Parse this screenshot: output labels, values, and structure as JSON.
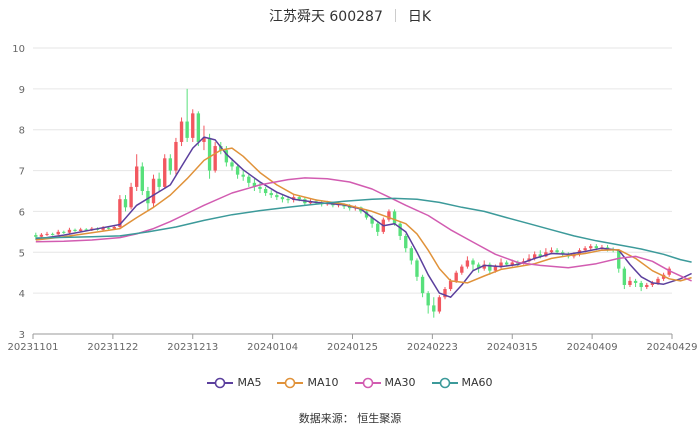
{
  "header": {
    "title": "江苏舜天 600287",
    "period": "日K"
  },
  "source": "数据来源： 恒生聚源",
  "colors": {
    "up": "#f2575f",
    "down": "#57e07b",
    "MA5": "#5b3f9d",
    "MA10": "#e0923a",
    "MA30": "#d25cb1",
    "MA60": "#3c9a9a"
  },
  "chart_data": {
    "type": "candlestick",
    "title": "江苏舜天 600287 日K",
    "ylim": [
      3,
      10
    ],
    "yticks": [
      "3",
      "4",
      "5",
      "6",
      "7",
      "8",
      "9",
      "10"
    ],
    "xlabels": [
      "20231101",
      "20231122",
      "20231213",
      "20240104",
      "20240125",
      "20240223",
      "20240315",
      "20240409",
      "20240429"
    ],
    "grid": true,
    "legend_position": "bottom-center",
    "legend": [
      "MA5",
      "MA10",
      "MA30",
      "MA60"
    ],
    "candles": [
      [
        5.42,
        5.38,
        5.48,
        5.3
      ],
      [
        5.38,
        5.43,
        5.47,
        5.35
      ],
      [
        5.43,
        5.45,
        5.5,
        5.4
      ],
      [
        5.45,
        5.44,
        5.48,
        5.41
      ],
      [
        5.44,
        5.5,
        5.55,
        5.42
      ],
      [
        5.5,
        5.48,
        5.53,
        5.45
      ],
      [
        5.48,
        5.55,
        5.6,
        5.46
      ],
      [
        5.55,
        5.52,
        5.58,
        5.5
      ],
      [
        5.52,
        5.56,
        5.6,
        5.5
      ],
      [
        5.56,
        5.54,
        5.59,
        5.52
      ],
      [
        5.54,
        5.58,
        5.62,
        5.52
      ],
      [
        5.58,
        5.55,
        5.61,
        5.53
      ],
      [
        5.55,
        5.6,
        5.64,
        5.53
      ],
      [
        5.6,
        5.58,
        5.63,
        5.56
      ],
      [
        5.58,
        5.62,
        5.66,
        5.56
      ],
      [
        5.62,
        6.3,
        6.4,
        5.6
      ],
      [
        6.3,
        6.1,
        6.4,
        6.0
      ],
      [
        6.1,
        6.6,
        6.7,
        6.05
      ],
      [
        6.6,
        7.1,
        7.4,
        6.5
      ],
      [
        7.1,
        6.5,
        7.2,
        6.4
      ],
      [
        6.5,
        6.2,
        6.6,
        6.0
      ],
      [
        6.2,
        6.8,
        6.9,
        6.1
      ],
      [
        6.8,
        6.6,
        6.95,
        6.5
      ],
      [
        6.6,
        7.3,
        7.4,
        6.55
      ],
      [
        7.3,
        7.0,
        7.4,
        6.9
      ],
      [
        7.0,
        7.7,
        7.8,
        6.9
      ],
      [
        7.7,
        8.2,
        8.3,
        7.6
      ],
      [
        8.2,
        7.8,
        9.0,
        7.7
      ],
      [
        7.8,
        8.4,
        8.5,
        7.7
      ],
      [
        8.4,
        7.7,
        8.45,
        7.6
      ],
      [
        7.7,
        7.8,
        8.1,
        7.5
      ],
      [
        7.8,
        7.0,
        7.9,
        6.8
      ],
      [
        7.0,
        7.6,
        7.7,
        6.95
      ],
      [
        7.6,
        7.5,
        7.7,
        7.4
      ],
      [
        7.5,
        7.2,
        7.6,
        7.1
      ],
      [
        7.2,
        7.1,
        7.3,
        7.0
      ],
      [
        7.1,
        6.9,
        7.15,
        6.8
      ],
      [
        6.9,
        6.85,
        7.0,
        6.75
      ],
      [
        6.85,
        6.7,
        6.9,
        6.6
      ],
      [
        6.7,
        6.6,
        6.8,
        6.5
      ],
      [
        6.6,
        6.55,
        6.7,
        6.45
      ],
      [
        6.55,
        6.45,
        6.6,
        6.38
      ],
      [
        6.45,
        6.4,
        6.52,
        6.33
      ],
      [
        6.4,
        6.35,
        6.48,
        6.28
      ],
      [
        6.35,
        6.3,
        6.42,
        6.22
      ],
      [
        6.3,
        6.28,
        6.38,
        6.2
      ],
      [
        6.28,
        6.35,
        6.4,
        6.22
      ],
      [
        6.35,
        6.3,
        6.4,
        6.25
      ],
      [
        6.3,
        6.2,
        6.35,
        6.15
      ],
      [
        6.2,
        6.25,
        6.3,
        6.15
      ],
      [
        6.25,
        6.22,
        6.3,
        6.18
      ],
      [
        6.22,
        6.18,
        6.28,
        6.12
      ],
      [
        6.18,
        6.2,
        6.26,
        6.14
      ],
      [
        6.2,
        6.15,
        6.24,
        6.1
      ],
      [
        6.15,
        6.18,
        6.22,
        6.1
      ],
      [
        6.18,
        6.12,
        6.2,
        6.06
      ],
      [
        6.12,
        6.08,
        6.18,
        6.02
      ],
      [
        6.08,
        6.1,
        6.15,
        6.02
      ],
      [
        6.1,
        6.0,
        6.12,
        5.95
      ],
      [
        6.0,
        5.85,
        6.05,
        5.8
      ],
      [
        5.85,
        5.7,
        5.9,
        5.6
      ],
      [
        5.7,
        5.5,
        5.75,
        5.4
      ],
      [
        5.5,
        5.8,
        5.85,
        5.45
      ],
      [
        5.8,
        6.0,
        6.05,
        5.75
      ],
      [
        6.0,
        5.7,
        6.05,
        5.65
      ],
      [
        5.7,
        5.4,
        5.75,
        5.3
      ],
      [
        5.4,
        5.1,
        5.45,
        5.0
      ],
      [
        5.1,
        4.8,
        5.15,
        4.7
      ],
      [
        4.8,
        4.4,
        4.85,
        4.3
      ],
      [
        4.4,
        4.0,
        4.45,
        3.9
      ],
      [
        4.0,
        3.7,
        4.05,
        3.5
      ],
      [
        3.7,
        3.55,
        3.9,
        3.4
      ],
      [
        3.55,
        3.9,
        3.95,
        3.5
      ],
      [
        3.9,
        4.1,
        4.15,
        3.85
      ],
      [
        4.1,
        4.3,
        4.35,
        4.05
      ],
      [
        4.3,
        4.5,
        4.55,
        4.25
      ],
      [
        4.5,
        4.65,
        4.7,
        4.45
      ],
      [
        4.65,
        4.8,
        4.9,
        4.6
      ],
      [
        4.8,
        4.7,
        4.85,
        4.55
      ],
      [
        4.7,
        4.6,
        4.75,
        4.5
      ],
      [
        4.6,
        4.7,
        4.8,
        4.55
      ],
      [
        4.7,
        4.55,
        4.75,
        4.45
      ],
      [
        4.55,
        4.65,
        4.7,
        4.5
      ],
      [
        4.65,
        4.75,
        4.85,
        4.6
      ],
      [
        4.75,
        4.7,
        4.8,
        4.65
      ],
      [
        4.7,
        4.75,
        4.82,
        4.65
      ],
      [
        4.75,
        4.72,
        4.8,
        4.66
      ],
      [
        4.72,
        4.78,
        4.85,
        4.7
      ],
      [
        4.78,
        4.85,
        4.95,
        4.75
      ],
      [
        4.85,
        4.95,
        5.02,
        4.8
      ],
      [
        4.95,
        4.9,
        5.05,
        4.85
      ],
      [
        4.9,
        5.0,
        5.1,
        4.88
      ],
      [
        5.0,
        5.05,
        5.12,
        4.95
      ],
      [
        5.05,
        5.0,
        5.1,
        4.95
      ],
      [
        5.0,
        4.95,
        5.05,
        4.9
      ],
      [
        4.95,
        4.9,
        5.0,
        4.85
      ],
      [
        4.9,
        4.95,
        5.0,
        4.85
      ],
      [
        4.95,
        5.05,
        5.1,
        4.9
      ],
      [
        5.05,
        5.1,
        5.15,
        5.0
      ],
      [
        5.1,
        5.15,
        5.2,
        5.05
      ],
      [
        5.15,
        5.1,
        5.2,
        5.05
      ],
      [
        5.1,
        5.12,
        5.18,
        5.05
      ],
      [
        5.12,
        5.08,
        5.18,
        5.02
      ],
      [
        5.08,
        5.05,
        5.12,
        5.0
      ],
      [
        5.05,
        4.6,
        5.08,
        4.5
      ],
      [
        4.6,
        4.2,
        4.65,
        4.1
      ],
      [
        4.2,
        4.3,
        4.4,
        4.15
      ],
      [
        4.3,
        4.25,
        4.35,
        4.15
      ],
      [
        4.25,
        4.15,
        4.3,
        4.05
      ],
      [
        4.15,
        4.2,
        4.25,
        4.1
      ],
      [
        4.2,
        4.25,
        4.3,
        4.15
      ],
      [
        4.25,
        4.35,
        4.4,
        4.2
      ],
      [
        4.35,
        4.45,
        4.5,
        4.3
      ],
      [
        4.45,
        4.6,
        4.65,
        4.4
      ]
    ],
    "series": [
      {
        "name": "MA5",
        "values": [
          [
            0,
            5.32
          ],
          [
            5,
            5.42
          ],
          [
            10,
            5.55
          ],
          [
            15,
            5.68
          ],
          [
            18,
            6.15
          ],
          [
            21,
            6.4
          ],
          [
            24,
            6.65
          ],
          [
            26,
            7.1
          ],
          [
            28,
            7.55
          ],
          [
            30,
            7.82
          ],
          [
            32,
            7.75
          ],
          [
            34,
            7.4
          ],
          [
            37,
            7.02
          ],
          [
            40,
            6.72
          ],
          [
            43,
            6.47
          ],
          [
            46,
            6.3
          ],
          [
            50,
            6.22
          ],
          [
            55,
            6.16
          ],
          [
            58,
            6.06
          ],
          [
            60,
            5.85
          ],
          [
            62,
            5.65
          ],
          [
            64,
            5.7
          ],
          [
            66,
            5.5
          ],
          [
            68,
            5.0
          ],
          [
            70,
            4.45
          ],
          [
            72,
            4.0
          ],
          [
            74,
            3.9
          ],
          [
            76,
            4.2
          ],
          [
            78,
            4.55
          ],
          [
            80,
            4.68
          ],
          [
            83,
            4.65
          ],
          [
            86,
            4.7
          ],
          [
            89,
            4.85
          ],
          [
            92,
            4.97
          ],
          [
            95,
            4.95
          ],
          [
            98,
            5.02
          ],
          [
            101,
            5.1
          ],
          [
            104,
            5.05
          ],
          [
            106,
            4.7
          ],
          [
            108,
            4.4
          ],
          [
            110,
            4.25
          ],
          [
            112,
            4.22
          ],
          [
            115,
            4.35
          ],
          [
            117,
            4.48
          ]
        ]
      },
      {
        "name": "MA10",
        "values": [
          [
            0,
            5.3
          ],
          [
            5,
            5.38
          ],
          [
            10,
            5.48
          ],
          [
            15,
            5.58
          ],
          [
            18,
            5.85
          ],
          [
            21,
            6.1
          ],
          [
            24,
            6.4
          ],
          [
            27,
            6.8
          ],
          [
            30,
            7.25
          ],
          [
            33,
            7.5
          ],
          [
            35,
            7.55
          ],
          [
            37,
            7.35
          ],
          [
            40,
            6.95
          ],
          [
            43,
            6.65
          ],
          [
            46,
            6.42
          ],
          [
            50,
            6.28
          ],
          [
            55,
            6.18
          ],
          [
            60,
            6.0
          ],
          [
            63,
            5.85
          ],
          [
            66,
            5.7
          ],
          [
            68,
            5.45
          ],
          [
            70,
            5.05
          ],
          [
            72,
            4.6
          ],
          [
            74,
            4.3
          ],
          [
            77,
            4.25
          ],
          [
            80,
            4.42
          ],
          [
            83,
            4.58
          ],
          [
            86,
            4.65
          ],
          [
            89,
            4.72
          ],
          [
            92,
            4.85
          ],
          [
            95,
            4.92
          ],
          [
            98,
            4.97
          ],
          [
            101,
            5.05
          ],
          [
            104,
            5.06
          ],
          [
            107,
            4.85
          ],
          [
            110,
            4.55
          ],
          [
            113,
            4.35
          ],
          [
            115,
            4.3
          ],
          [
            117,
            4.38
          ]
        ]
      },
      {
        "name": "MA30",
        "values": [
          [
            0,
            5.26
          ],
          [
            5,
            5.27
          ],
          [
            10,
            5.3
          ],
          [
            15,
            5.36
          ],
          [
            18,
            5.45
          ],
          [
            21,
            5.58
          ],
          [
            24,
            5.75
          ],
          [
            27,
            5.95
          ],
          [
            30,
            6.15
          ],
          [
            35,
            6.45
          ],
          [
            40,
            6.65
          ],
          [
            45,
            6.78
          ],
          [
            48,
            6.82
          ],
          [
            52,
            6.8
          ],
          [
            56,
            6.72
          ],
          [
            60,
            6.55
          ],
          [
            63,
            6.35
          ],
          [
            66,
            6.15
          ],
          [
            70,
            5.9
          ],
          [
            74,
            5.55
          ],
          [
            78,
            5.25
          ],
          [
            82,
            4.95
          ],
          [
            86,
            4.75
          ],
          [
            90,
            4.68
          ],
          [
            95,
            4.62
          ],
          [
            100,
            4.72
          ],
          [
            104,
            4.85
          ],
          [
            107,
            4.9
          ],
          [
            110,
            4.78
          ],
          [
            113,
            4.55
          ],
          [
            116,
            4.36
          ],
          [
            117,
            4.3
          ]
        ]
      },
      {
        "name": "MA60",
        "values": [
          [
            0,
            5.35
          ],
          [
            10,
            5.38
          ],
          [
            15,
            5.4
          ],
          [
            20,
            5.5
          ],
          [
            25,
            5.62
          ],
          [
            30,
            5.78
          ],
          [
            35,
            5.92
          ],
          [
            40,
            6.02
          ],
          [
            45,
            6.1
          ],
          [
            50,
            6.18
          ],
          [
            55,
            6.25
          ],
          [
            60,
            6.3
          ],
          [
            64,
            6.32
          ],
          [
            68,
            6.3
          ],
          [
            72,
            6.22
          ],
          [
            76,
            6.1
          ],
          [
            80,
            6.0
          ],
          [
            84,
            5.85
          ],
          [
            88,
            5.7
          ],
          [
            92,
            5.55
          ],
          [
            96,
            5.4
          ],
          [
            100,
            5.28
          ],
          [
            104,
            5.18
          ],
          [
            108,
            5.08
          ],
          [
            112,
            4.95
          ],
          [
            115,
            4.82
          ],
          [
            117,
            4.76
          ]
        ]
      }
    ]
  }
}
